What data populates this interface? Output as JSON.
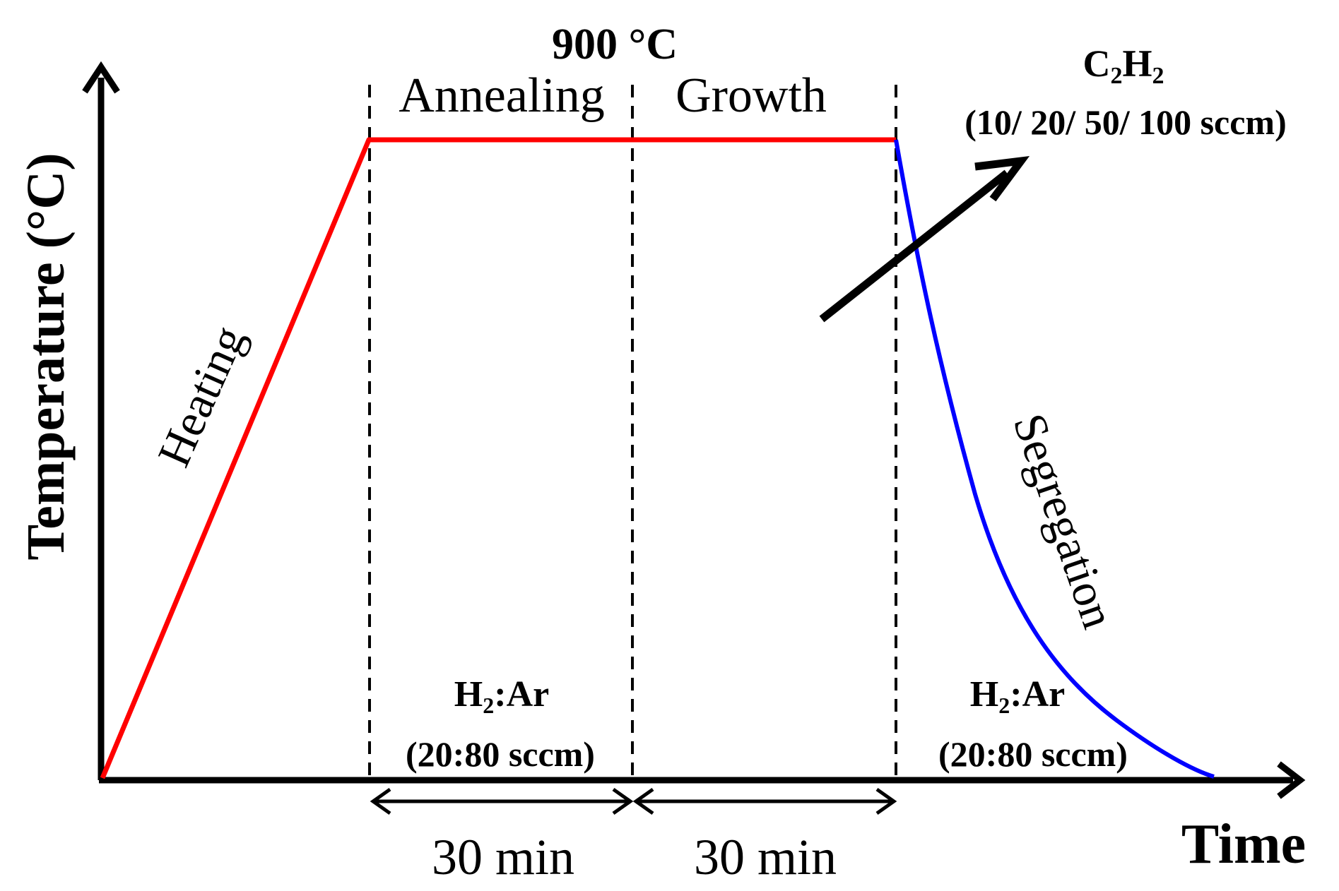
{
  "diagram": {
    "axes": {
      "y_label": "Temperature (°C)",
      "x_label": "Time"
    },
    "top_temperature_label": "900 °C",
    "stages": {
      "heating": "Heating",
      "annealing": "Annealing",
      "growth": "Growth",
      "segregation": "Segregation"
    },
    "gas_labels": {
      "annealing": {
        "formula_left": "H",
        "formula_sub": "2",
        "formula_right": ":Ar",
        "flow": "(20:80 sccm)"
      },
      "cooling": {
        "formula_left": "H",
        "formula_sub": "2",
        "formula_right": ":Ar",
        "flow": "(20:80 sccm)"
      },
      "acetylene": {
        "c": "C",
        "c_sub": "2",
        "h": "H",
        "h_sub": "2",
        "flows": "(10/ 20/ 50/ 100 sccm)"
      }
    },
    "durations": {
      "annealing": "30 min",
      "growth": "30 min"
    },
    "colors": {
      "temperature_profile": "#ff0000",
      "segregation_curve": "#0000ff",
      "axes": "#000000",
      "text": "#000000"
    }
  }
}
